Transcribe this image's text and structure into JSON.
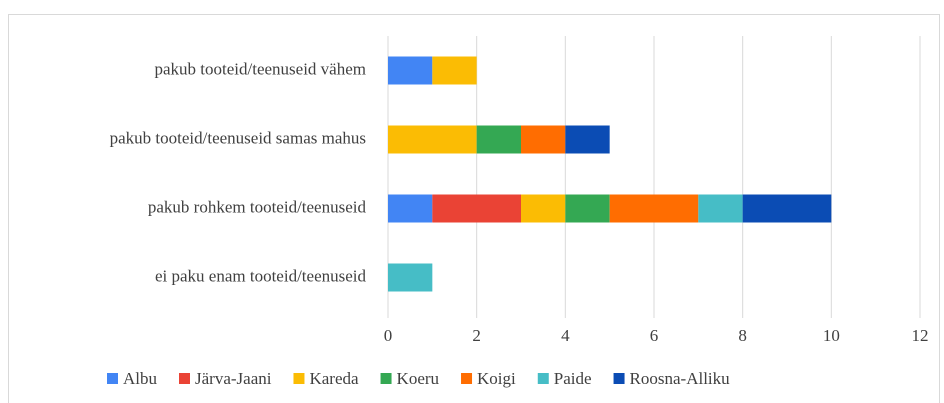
{
  "chart_data": {
    "type": "stacked-barh",
    "categories": [
      "pakub tooteid/teenuseid vähem",
      "pakub tooteid/teenuseid samas mahus",
      "pakub rohkem tooteid/teenuseid",
      "ei paku enam tooteid/teenuseid"
    ],
    "series": [
      {
        "name": "Albu",
        "color": "#4285f4",
        "values": [
          1,
          0,
          1,
          0
        ]
      },
      {
        "name": "Järva-Jaani",
        "color": "#ea4335",
        "values": [
          0,
          0,
          2,
          0
        ]
      },
      {
        "name": "Kareda",
        "color": "#fbbc04",
        "values": [
          1,
          2,
          1,
          0
        ]
      },
      {
        "name": "Koeru",
        "color": "#34a853",
        "values": [
          0,
          1,
          1,
          0
        ]
      },
      {
        "name": "Koigi",
        "color": "#ff6d01",
        "values": [
          0,
          1,
          2,
          0
        ]
      },
      {
        "name": "Paide",
        "color": "#46bdc6",
        "values": [
          0,
          0,
          1,
          1
        ]
      },
      {
        "name": "Roosna-Alliku",
        "color": "#0b4cb4",
        "values": [
          0,
          1,
          2,
          0
        ]
      }
    ],
    "xlim": [
      0,
      12
    ],
    "xticks": [
      0,
      2,
      4,
      6,
      8,
      10,
      12
    ],
    "grid": true,
    "legend": "bottom"
  }
}
